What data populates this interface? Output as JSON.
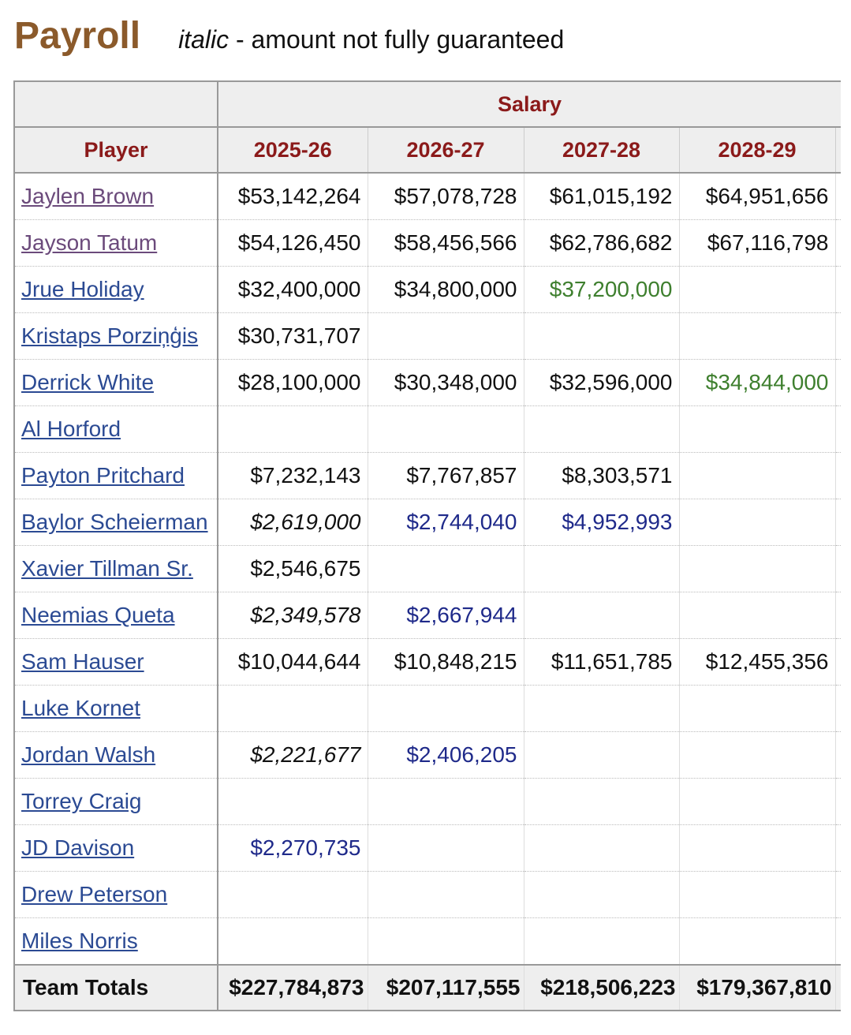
{
  "header": {
    "title": "Payroll",
    "note_emphasis": "italic",
    "note_text": " - amount not fully guaranteed"
  },
  "table": {
    "group_header": "Salary",
    "columns": [
      "Player",
      "2025-26",
      "2026-27",
      "2027-28",
      "2028-29"
    ],
    "rows": [
      {
        "player": "Jaylen Brown",
        "visited": true,
        "salaries": [
          {
            "text": "$53,142,264",
            "style": "plain"
          },
          {
            "text": "$57,078,728",
            "style": "plain"
          },
          {
            "text": "$61,015,192",
            "style": "plain"
          },
          {
            "text": "$64,951,656",
            "style": "plain"
          }
        ]
      },
      {
        "player": "Jayson Tatum",
        "visited": true,
        "salaries": [
          {
            "text": "$54,126,450",
            "style": "plain"
          },
          {
            "text": "$58,456,566",
            "style": "plain"
          },
          {
            "text": "$62,786,682",
            "style": "plain"
          },
          {
            "text": "$67,116,798",
            "style": "plain"
          }
        ]
      },
      {
        "player": "Jrue Holiday",
        "visited": false,
        "salaries": [
          {
            "text": "$32,400,000",
            "style": "plain"
          },
          {
            "text": "$34,800,000",
            "style": "plain"
          },
          {
            "text": "$37,200,000",
            "style": "green"
          },
          null
        ]
      },
      {
        "player": "Kristaps Porziņģis",
        "visited": false,
        "salaries": [
          {
            "text": "$30,731,707",
            "style": "plain"
          },
          null,
          null,
          null
        ]
      },
      {
        "player": "Derrick White",
        "visited": false,
        "salaries": [
          {
            "text": "$28,100,000",
            "style": "plain"
          },
          {
            "text": "$30,348,000",
            "style": "plain"
          },
          {
            "text": "$32,596,000",
            "style": "plain"
          },
          {
            "text": "$34,844,000",
            "style": "green"
          }
        ]
      },
      {
        "player": "Al Horford",
        "visited": false,
        "salaries": [
          null,
          null,
          null,
          null
        ]
      },
      {
        "player": "Payton Pritchard",
        "visited": false,
        "salaries": [
          {
            "text": "$7,232,143",
            "style": "plain"
          },
          {
            "text": "$7,767,857",
            "style": "plain"
          },
          {
            "text": "$8,303,571",
            "style": "plain"
          },
          null
        ]
      },
      {
        "player": "Baylor Scheierman",
        "visited": false,
        "salaries": [
          {
            "text": "$2,619,000",
            "style": "italic"
          },
          {
            "text": "$2,744,040",
            "style": "blue"
          },
          {
            "text": "$4,952,993",
            "style": "blue"
          },
          null
        ]
      },
      {
        "player": "Xavier Tillman Sr.",
        "visited": false,
        "salaries": [
          {
            "text": "$2,546,675",
            "style": "plain"
          },
          null,
          null,
          null
        ]
      },
      {
        "player": "Neemias Queta",
        "visited": false,
        "salaries": [
          {
            "text": "$2,349,578",
            "style": "italic"
          },
          {
            "text": "$2,667,944",
            "style": "blue"
          },
          null,
          null
        ]
      },
      {
        "player": "Sam Hauser",
        "visited": false,
        "salaries": [
          {
            "text": "$10,044,644",
            "style": "plain"
          },
          {
            "text": "$10,848,215",
            "style": "plain"
          },
          {
            "text": "$11,651,785",
            "style": "plain"
          },
          {
            "text": "$12,455,356",
            "style": "plain"
          }
        ]
      },
      {
        "player": "Luke Kornet",
        "visited": false,
        "salaries": [
          null,
          null,
          null,
          null
        ]
      },
      {
        "player": "Jordan Walsh",
        "visited": false,
        "salaries": [
          {
            "text": "$2,221,677",
            "style": "italic"
          },
          {
            "text": "$2,406,205",
            "style": "blue"
          },
          null,
          null
        ]
      },
      {
        "player": "Torrey Craig",
        "visited": false,
        "salaries": [
          null,
          null,
          null,
          null
        ]
      },
      {
        "player": "JD Davison",
        "visited": false,
        "salaries": [
          {
            "text": "$2,270,735",
            "style": "blue"
          },
          null,
          null,
          null
        ]
      },
      {
        "player": "Drew Peterson",
        "visited": false,
        "salaries": [
          null,
          null,
          null,
          null
        ]
      },
      {
        "player": "Miles Norris",
        "visited": false,
        "salaries": [
          null,
          null,
          null,
          null
        ]
      }
    ],
    "totals_label": "Team Totals",
    "totals": [
      "$227,784,873",
      "$207,117,555",
      "$218,506,223",
      "$179,367,810"
    ]
  }
}
